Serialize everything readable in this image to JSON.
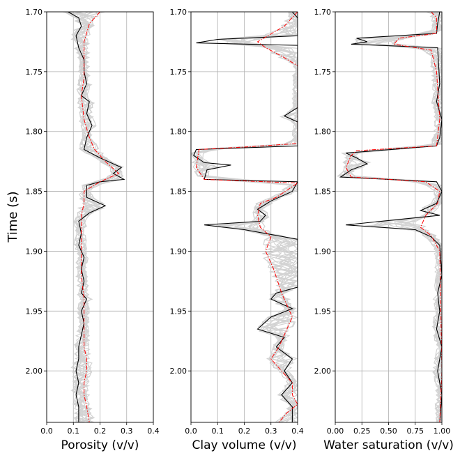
{
  "chart_data": [
    {
      "type": "line",
      "xlabel": "Porosity (v/v)",
      "ylabel": "Time (s)",
      "xlim": [
        0.0,
        0.4
      ],
      "ylim": [
        1.7,
        2.043
      ],
      "y_inverted": true,
      "x_ticks": [
        "0.0",
        "0.1",
        "0.2",
        "0.3",
        "0.4"
      ],
      "x_tick_values": [
        0.0,
        0.1,
        0.2,
        0.3,
        0.4
      ],
      "y_ticks": [
        "1.70",
        "1.75",
        "1.80",
        "1.85",
        "1.90",
        "1.95",
        "2.00"
      ],
      "y_tick_values": [
        1.7,
        1.75,
        1.8,
        1.85,
        1.9,
        1.95,
        2.0
      ],
      "grid": true,
      "series": [
        {
          "style": "black-solid",
          "color": "#000000",
          "points": [
            [
              0.08,
              1.7
            ],
            [
              0.12,
              1.705
            ],
            [
              0.13,
              1.712
            ],
            [
              0.11,
              1.72
            ],
            [
              0.12,
              1.73
            ],
            [
              0.14,
              1.74
            ],
            [
              0.14,
              1.75
            ],
            [
              0.15,
              1.76
            ],
            [
              0.13,
              1.77
            ],
            [
              0.16,
              1.775
            ],
            [
              0.15,
              1.785
            ],
            [
              0.17,
              1.795
            ],
            [
              0.15,
              1.805
            ],
            [
              0.14,
              1.815
            ],
            [
              0.2,
              1.822
            ],
            [
              0.28,
              1.83
            ],
            [
              0.25,
              1.835
            ],
            [
              0.29,
              1.84
            ],
            [
              0.2,
              1.842
            ],
            [
              0.15,
              1.845
            ],
            [
              0.15,
              1.855
            ],
            [
              0.22,
              1.862
            ],
            [
              0.16,
              1.868
            ],
            [
              0.12,
              1.875
            ],
            [
              0.13,
              1.885
            ],
            [
              0.12,
              1.895
            ],
            [
              0.14,
              1.905
            ],
            [
              0.13,
              1.915
            ],
            [
              0.14,
              1.925
            ],
            [
              0.13,
              1.935
            ],
            [
              0.15,
              1.94
            ],
            [
              0.13,
              1.95
            ],
            [
              0.14,
              1.96
            ],
            [
              0.13,
              1.97
            ],
            [
              0.12,
              1.98
            ],
            [
              0.12,
              1.99
            ],
            [
              0.11,
              2.0
            ],
            [
              0.12,
              2.01
            ],
            [
              0.11,
              2.02
            ],
            [
              0.12,
              2.03
            ],
            [
              0.12,
              2.043
            ]
          ]
        },
        {
          "style": "red-dashdot",
          "color": "#ff0000",
          "points": [
            [
              0.2,
              1.7
            ],
            [
              0.16,
              1.71
            ],
            [
              0.14,
              1.725
            ],
            [
              0.14,
              1.74
            ],
            [
              0.14,
              1.755
            ],
            [
              0.13,
              1.77
            ],
            [
              0.14,
              1.79
            ],
            [
              0.16,
              1.805
            ],
            [
              0.18,
              1.815
            ],
            [
              0.22,
              1.825
            ],
            [
              0.27,
              1.835
            ],
            [
              0.2,
              1.842
            ],
            [
              0.14,
              1.85
            ],
            [
              0.14,
              1.86
            ],
            [
              0.13,
              1.87
            ],
            [
              0.13,
              1.885
            ],
            [
              0.13,
              1.9
            ],
            [
              0.13,
              1.92
            ],
            [
              0.14,
              1.94
            ],
            [
              0.14,
              1.96
            ],
            [
              0.14,
              1.98
            ],
            [
              0.15,
              1.99
            ],
            [
              0.15,
              2.0
            ],
            [
              0.14,
              2.01
            ],
            [
              0.14,
              2.02
            ],
            [
              0.15,
              2.03
            ],
            [
              0.16,
              2.043
            ]
          ]
        }
      ]
    },
    {
      "type": "line",
      "xlabel": "Clay volume (v/v)",
      "xlim": [
        0.0,
        0.4
      ],
      "ylim": [
        1.7,
        2.043
      ],
      "y_inverted": true,
      "x_ticks": [
        "0.0",
        "0.1",
        "0.2",
        "0.3",
        "0.4"
      ],
      "x_tick_values": [
        0.0,
        0.1,
        0.2,
        0.3,
        0.4
      ],
      "y_ticks": [
        "1.70",
        "1.75",
        "1.80",
        "1.85",
        "1.90",
        "1.95",
        "2.00"
      ],
      "y_tick_values": [
        1.7,
        1.75,
        1.8,
        1.85,
        1.9,
        1.95,
        2.0
      ],
      "grid": true,
      "series": [
        {
          "style": "black-solid",
          "color": "#000000",
          "points": [
            [
              0.38,
              1.7
            ],
            [
              0.4,
              1.705
            ],
            [
              0.4,
              1.72
            ],
            [
              0.1,
              1.723
            ],
            [
              0.02,
              1.726
            ],
            [
              0.4,
              1.728
            ],
            [
              0.4,
              1.78
            ],
            [
              0.35,
              1.787
            ],
            [
              0.4,
              1.792
            ],
            [
              0.4,
              1.812
            ],
            [
              0.02,
              1.815
            ],
            [
              0.01,
              1.82
            ],
            [
              0.05,
              1.826
            ],
            [
              0.15,
              1.828
            ],
            [
              0.06,
              1.832
            ],
            [
              0.05,
              1.84
            ],
            [
              0.4,
              1.842
            ],
            [
              0.38,
              1.85
            ],
            [
              0.3,
              1.858
            ],
            [
              0.25,
              1.865
            ],
            [
              0.28,
              1.87
            ],
            [
              0.26,
              1.875
            ],
            [
              0.05,
              1.878
            ],
            [
              0.2,
              1.882
            ],
            [
              0.3,
              1.886
            ],
            [
              0.4,
              1.89
            ],
            [
              0.4,
              1.93
            ],
            [
              0.32,
              1.935
            ],
            [
              0.3,
              1.94
            ],
            [
              0.38,
              1.948
            ],
            [
              0.3,
              1.955
            ],
            [
              0.25,
              1.965
            ],
            [
              0.35,
              1.972
            ],
            [
              0.32,
              1.98
            ],
            [
              0.38,
              1.99
            ],
            [
              0.35,
              2.0
            ],
            [
              0.38,
              2.01
            ],
            [
              0.34,
              2.02
            ],
            [
              0.38,
              2.03
            ],
            [
              0.38,
              2.043
            ]
          ]
        },
        {
          "style": "red-dashdot",
          "color": "#ff0000",
          "points": [
            [
              0.4,
              1.7
            ],
            [
              0.35,
              1.712
            ],
            [
              0.25,
              1.725
            ],
            [
              0.28,
              1.73
            ],
            [
              0.34,
              1.737
            ],
            [
              0.4,
              1.745
            ],
            [
              0.4,
              1.81
            ],
            [
              0.2,
              1.813
            ],
            [
              0.03,
              1.815
            ],
            [
              0.02,
              1.83
            ],
            [
              0.05,
              1.84
            ],
            [
              0.4,
              1.843
            ],
            [
              0.32,
              1.855
            ],
            [
              0.26,
              1.86
            ],
            [
              0.25,
              1.87
            ],
            [
              0.26,
              1.88
            ],
            [
              0.3,
              1.888
            ],
            [
              0.28,
              1.9
            ],
            [
              0.31,
              1.915
            ],
            [
              0.34,
              1.935
            ],
            [
              0.36,
              1.945
            ],
            [
              0.38,
              1.955
            ],
            [
              0.36,
              1.965
            ],
            [
              0.33,
              1.98
            ],
            [
              0.3,
              1.99
            ],
            [
              0.34,
              2.0
            ],
            [
              0.38,
              2.01
            ],
            [
              0.38,
              2.02
            ],
            [
              0.4,
              2.028
            ],
            [
              0.36,
              2.035
            ],
            [
              0.33,
              2.043
            ]
          ]
        }
      ]
    },
    {
      "type": "line",
      "xlabel": "Water saturation (v/v)",
      "xlim": [
        0.0,
        1.0
      ],
      "ylim": [
        1.7,
        2.043
      ],
      "y_inverted": true,
      "x_ticks": [
        "0.00",
        "0.25",
        "0.50",
        "0.75",
        "1.00"
      ],
      "x_tick_values": [
        0.0,
        0.25,
        0.5,
        0.75,
        1.0
      ],
      "y_ticks": [
        "1.70",
        "1.75",
        "1.80",
        "1.85",
        "1.90",
        "1.95",
        "2.00"
      ],
      "y_tick_values": [
        1.7,
        1.75,
        1.8,
        1.85,
        1.9,
        1.95,
        2.0
      ],
      "grid": true,
      "series": [
        {
          "style": "black-solid",
          "color": "#000000",
          "points": [
            [
              0.98,
              1.7
            ],
            [
              0.96,
              1.71
            ],
            [
              0.95,
              1.718
            ],
            [
              0.2,
              1.722
            ],
            [
              0.3,
              1.725
            ],
            [
              0.15,
              1.727
            ],
            [
              0.96,
              1.73
            ],
            [
              0.98,
              1.76
            ],
            [
              0.95,
              1.775
            ],
            [
              1.0,
              1.79
            ],
            [
              0.98,
              1.805
            ],
            [
              0.95,
              1.812
            ],
            [
              0.1,
              1.818
            ],
            [
              0.2,
              1.822
            ],
            [
              0.3,
              1.827
            ],
            [
              0.15,
              1.832
            ],
            [
              0.05,
              1.838
            ],
            [
              0.95,
              1.842
            ],
            [
              1.0,
              1.85
            ],
            [
              0.95,
              1.86
            ],
            [
              0.8,
              1.866
            ],
            [
              0.98,
              1.87
            ],
            [
              0.1,
              1.878
            ],
            [
              0.75,
              1.882
            ],
            [
              0.9,
              1.888
            ],
            [
              0.98,
              1.895
            ],
            [
              1.0,
              1.92
            ],
            [
              0.96,
              1.935
            ],
            [
              0.98,
              1.95
            ],
            [
              0.95,
              1.965
            ],
            [
              1.0,
              1.98
            ],
            [
              0.96,
              2.0
            ],
            [
              1.0,
              2.02
            ],
            [
              0.98,
              2.043
            ]
          ]
        },
        {
          "style": "red-dashdot",
          "color": "#ff0000",
          "points": [
            [
              0.9,
              1.7
            ],
            [
              0.95,
              1.705
            ],
            [
              0.95,
              1.718
            ],
            [
              0.6,
              1.722
            ],
            [
              0.55,
              1.727
            ],
            [
              0.9,
              1.732
            ],
            [
              0.95,
              1.75
            ],
            [
              0.98,
              1.79
            ],
            [
              0.95,
              1.812
            ],
            [
              0.2,
              1.816
            ],
            [
              0.15,
              1.82
            ],
            [
              0.1,
              1.83
            ],
            [
              0.15,
              1.838
            ],
            [
              0.85,
              1.842
            ],
            [
              0.98,
              1.85
            ],
            [
              0.96,
              1.86
            ],
            [
              0.85,
              1.87
            ],
            [
              0.8,
              1.88
            ],
            [
              0.9,
              1.887
            ],
            [
              0.98,
              1.9
            ],
            [
              0.99,
              1.95
            ],
            [
              1.0,
              2.0
            ],
            [
              0.98,
              2.043
            ]
          ]
        }
      ]
    }
  ]
}
